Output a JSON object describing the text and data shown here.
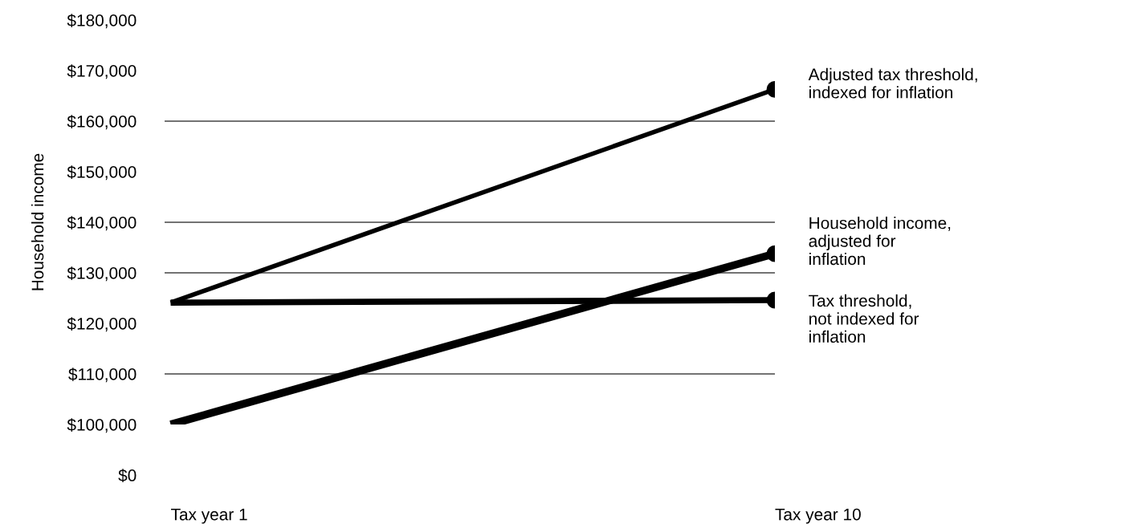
{
  "chart_data": {
    "type": "line",
    "ylabel": "Household income",
    "categories": [
      "Tax year 1",
      "Tax year 10"
    ],
    "ylim": [
      100000,
      180000
    ],
    "annotations": [
      "$0"
    ],
    "yticks": [
      {
        "value": 100000,
        "label": "$100,000"
      },
      {
        "value": 110000,
        "label": "$110,000"
      },
      {
        "value": 120000,
        "label": "$120,000"
      },
      {
        "value": 130000,
        "label": "$130,000"
      },
      {
        "value": 140000,
        "label": "$140,000"
      },
      {
        "value": 150000,
        "label": "$150,000"
      },
      {
        "value": 160000,
        "label": "$160,000"
      },
      {
        "value": 170000,
        "label": "$170,000"
      },
      {
        "value": 180000,
        "label": "$180,000"
      }
    ],
    "series": [
      {
        "name": "Adjusted tax threshold,\nindexed for inflation",
        "color": "#000000",
        "values": [
          124100,
          166300
        ]
      },
      {
        "name": "Household income,\nadjusted for\ninflation",
        "color": "#000000",
        "values": [
          100000,
          133800
        ]
      },
      {
        "name": "Tax threshold,\nnot indexed for\ninflation",
        "color": "#000000",
        "values": [
          124100,
          124600
        ]
      }
    ],
    "ref_lines": [
      {
        "axis": "y",
        "value": 110000,
        "color": "#444444"
      },
      {
        "axis": "y",
        "value": 130000,
        "color": "#444444"
      },
      {
        "axis": "y",
        "value": 140000,
        "color": "#444444"
      },
      {
        "axis": "y",
        "value": 160000,
        "color": "#444444"
      }
    ],
    "marker": "circle",
    "legend": false,
    "grid": false
  }
}
